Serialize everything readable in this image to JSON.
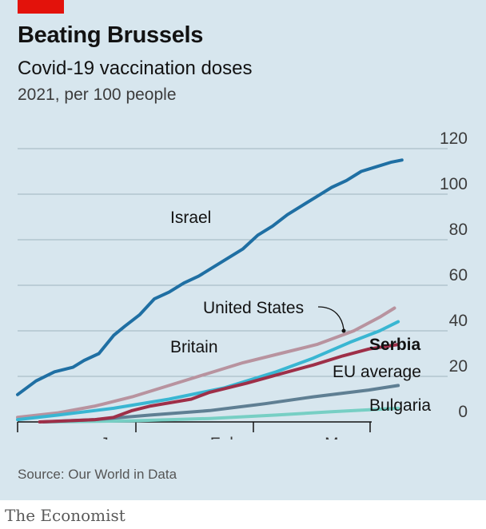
{
  "header": {
    "title": "Beating Brussels",
    "subtitle": "Covid-19 vaccination doses",
    "unit": "2021, per 100 people"
  },
  "source": "Source: Our World in Data",
  "footer": "The Economist",
  "colors": {
    "israel": "#1f6fa3",
    "united_states": "#39b6d2",
    "britain": "#b8939f",
    "serbia": "#9e2f48",
    "eu_average": "#5f7f93",
    "bulgaria": "#77cfc4"
  },
  "chart_data": {
    "type": "line",
    "yticks": [
      0,
      20,
      40,
      60,
      80,
      100,
      120
    ],
    "ylim": [
      0,
      120
    ],
    "xlim": [
      "2020-12-20",
      "2021-04-05"
    ],
    "xticks": [
      {
        "label": "Jan",
        "date": "2021-01-15"
      },
      {
        "label": "Feb",
        "date": "2021-02-14"
      },
      {
        "label": "Mar",
        "date": "2021-03-17"
      }
    ],
    "series": [
      {
        "name": "Israel",
        "key": "israel",
        "points": [
          [
            "2020-12-20",
            12
          ],
          [
            "2020-12-25",
            18
          ],
          [
            "2020-12-30",
            22
          ],
          [
            "2021-01-04",
            24
          ],
          [
            "2021-01-07",
            27
          ],
          [
            "2021-01-11",
            30
          ],
          [
            "2021-01-15",
            38
          ],
          [
            "2021-01-18",
            42
          ],
          [
            "2021-01-22",
            47
          ],
          [
            "2021-01-26",
            54
          ],
          [
            "2021-01-30",
            57
          ],
          [
            "2021-02-03",
            61
          ],
          [
            "2021-02-07",
            64
          ],
          [
            "2021-02-11",
            68
          ],
          [
            "2021-02-15",
            72
          ],
          [
            "2021-02-19",
            76
          ],
          [
            "2021-02-23",
            82
          ],
          [
            "2021-02-27",
            86
          ],
          [
            "2021-03-03",
            91
          ],
          [
            "2021-03-07",
            95
          ],
          [
            "2021-03-11",
            99
          ],
          [
            "2021-03-15",
            103
          ],
          [
            "2021-03-19",
            106
          ],
          [
            "2021-03-23",
            110
          ],
          [
            "2021-03-27",
            112
          ],
          [
            "2021-03-31",
            114
          ],
          [
            "2021-04-03",
            115
          ]
        ]
      },
      {
        "name": "United States",
        "key": "united_states",
        "points": [
          [
            "2020-12-20",
            1
          ],
          [
            "2020-12-31",
            3
          ],
          [
            "2021-01-15",
            6
          ],
          [
            "2021-01-30",
            10
          ],
          [
            "2021-02-14",
            15
          ],
          [
            "2021-02-28",
            22
          ],
          [
            "2021-03-10",
            28
          ],
          [
            "2021-03-20",
            35
          ],
          [
            "2021-03-28",
            40
          ],
          [
            "2021-04-02",
            44
          ]
        ]
      },
      {
        "name": "Britain",
        "key": "britain",
        "points": [
          [
            "2020-12-20",
            2
          ],
          [
            "2020-12-31",
            4
          ],
          [
            "2021-01-10",
            7
          ],
          [
            "2021-01-20",
            11
          ],
          [
            "2021-01-30",
            16
          ],
          [
            "2021-02-09",
            21
          ],
          [
            "2021-02-19",
            26
          ],
          [
            "2021-03-01",
            30
          ],
          [
            "2021-03-11",
            34
          ],
          [
            "2021-03-21",
            40
          ],
          [
            "2021-03-28",
            46
          ],
          [
            "2021-04-01",
            50
          ]
        ]
      },
      {
        "name": "Serbia",
        "key": "serbia",
        "points": [
          [
            "2020-12-26",
            0
          ],
          [
            "2021-01-10",
            1
          ],
          [
            "2021-01-15",
            2
          ],
          [
            "2021-01-20",
            5
          ],
          [
            "2021-01-25",
            7
          ],
          [
            "2021-02-05",
            10
          ],
          [
            "2021-02-10",
            13
          ],
          [
            "2021-02-20",
            17
          ],
          [
            "2021-03-01",
            21
          ],
          [
            "2021-03-10",
            25
          ],
          [
            "2021-03-18",
            29
          ],
          [
            "2021-03-25",
            32
          ],
          [
            "2021-04-02",
            34
          ]
        ]
      },
      {
        "name": "EU average",
        "key": "eu_average",
        "points": [
          [
            "2020-12-27",
            0
          ],
          [
            "2021-01-10",
            1
          ],
          [
            "2021-01-25",
            3
          ],
          [
            "2021-02-10",
            5
          ],
          [
            "2021-02-25",
            8
          ],
          [
            "2021-03-10",
            11
          ],
          [
            "2021-03-25",
            14
          ],
          [
            "2021-04-02",
            16
          ]
        ]
      },
      {
        "name": "Bulgaria",
        "key": "bulgaria",
        "points": [
          [
            "2020-12-27",
            0
          ],
          [
            "2021-01-20",
            0.5
          ],
          [
            "2021-02-10",
            1.5
          ],
          [
            "2021-02-28",
            3
          ],
          [
            "2021-03-15",
            4.5
          ],
          [
            "2021-04-02",
            6
          ]
        ]
      }
    ],
    "annotations": [
      {
        "text": "Israel",
        "key": "israel"
      },
      {
        "text": "United States",
        "key": "united_states"
      },
      {
        "text": "Britain",
        "key": "britain"
      },
      {
        "text": "Serbia",
        "key": "serbia",
        "bold": true
      },
      {
        "text": "EU average",
        "key": "eu_average"
      },
      {
        "text": "Bulgaria",
        "key": "bulgaria"
      }
    ]
  }
}
